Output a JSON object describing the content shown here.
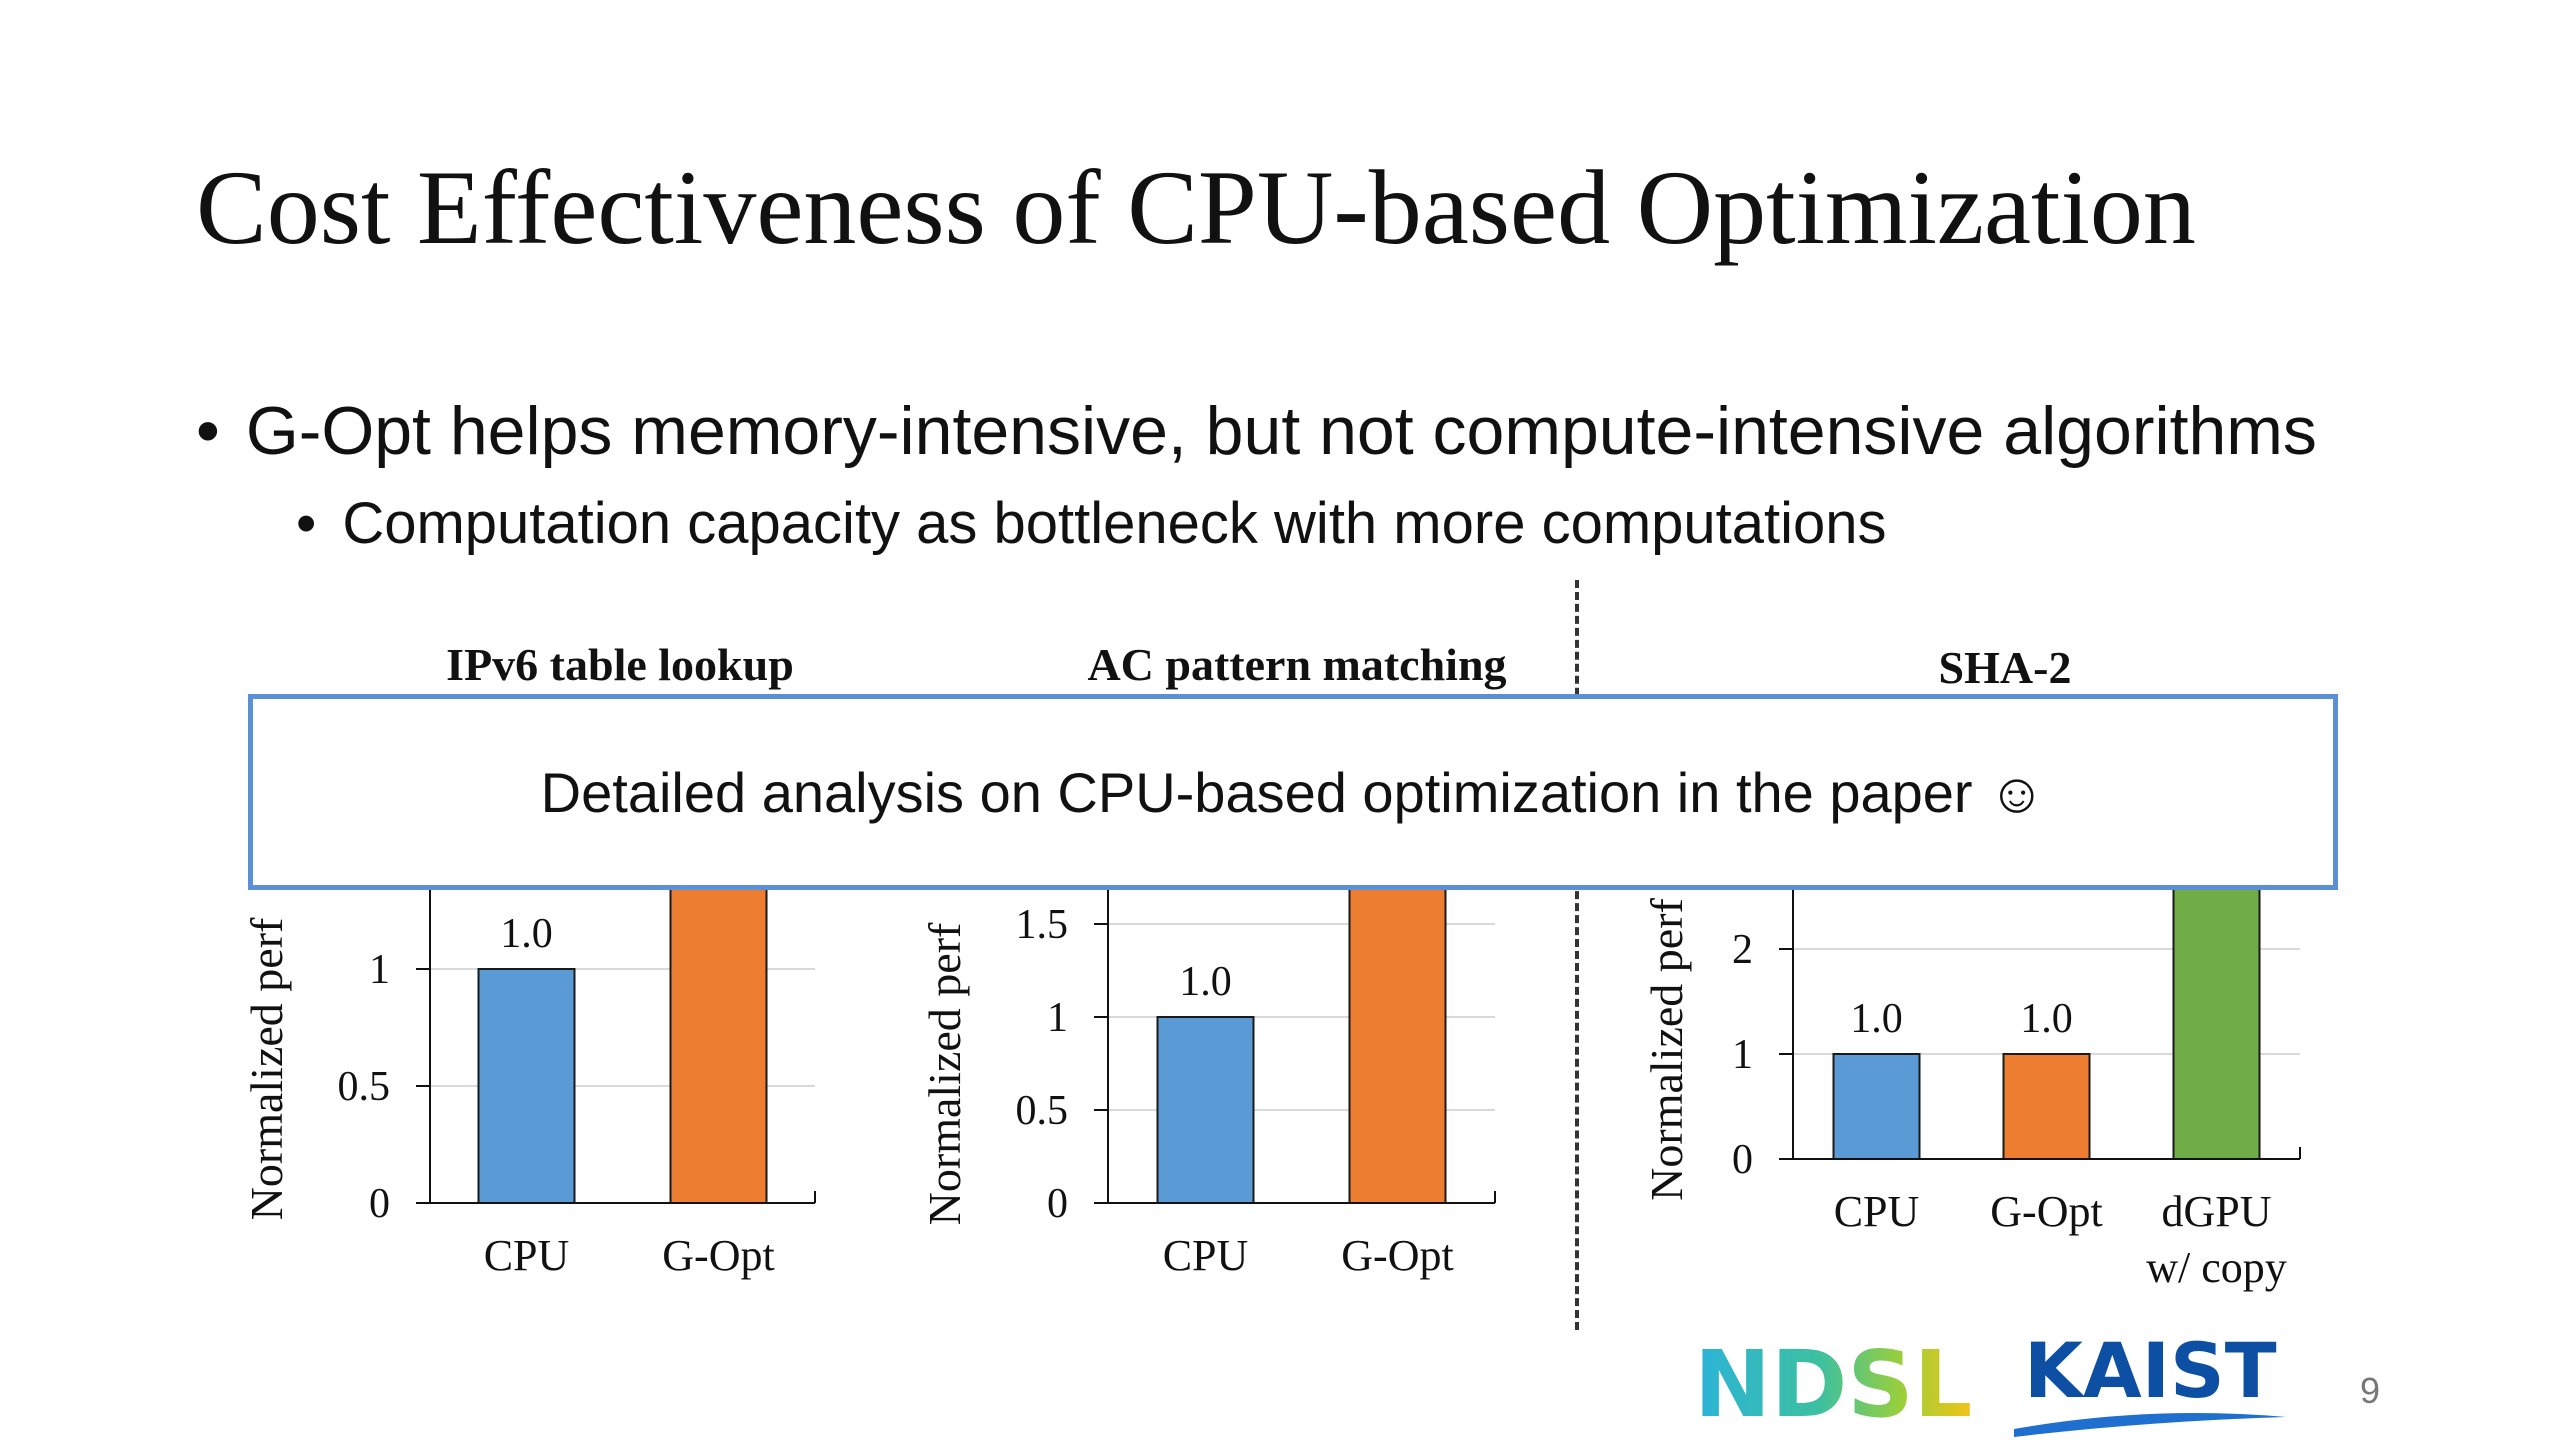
{
  "slide": {
    "title": "Cost Effectiveness of CPU-based Optimization",
    "bullets": [
      "G-Opt helps memory-intensive, but not compute-intensive algorithms",
      "Computation capacity as bottleneck with more computations"
    ],
    "bullet_glyph": "•",
    "callout": "Detailed analysis on CPU-based optimization in the paper ☺",
    "page_number": "9",
    "logos": [
      "NDSL",
      "KAIST"
    ]
  },
  "colors": {
    "cpu": "#5b9bd5",
    "gopt": "#ed7d31",
    "dgpu": "#70ad47",
    "callout_border": "#5b8fd6"
  },
  "chart_data": [
    {
      "type": "bar",
      "title": "IPv6 table lookup",
      "ylabel": "Normalized perf",
      "categories": [
        "CPU",
        "G-Opt"
      ],
      "values": [
        1.0,
        1.6
      ],
      "data_labels": [
        "1.0",
        ""
      ],
      "bar_colors": [
        "#5b9bd5",
        "#ed7d31"
      ],
      "yticks": [
        "0",
        "0.5",
        "1"
      ],
      "ylim": [
        0,
        1.6
      ],
      "grid": true,
      "legend": "none"
    },
    {
      "type": "bar",
      "title": "AC pattern matching",
      "ylabel": "Normalized perf",
      "categories": [
        "CPU",
        "G-Opt"
      ],
      "values": [
        1.0,
        2.0
      ],
      "data_labels": [
        "1.0",
        ""
      ],
      "bar_colors": [
        "#5b9bd5",
        "#ed7d31"
      ],
      "yticks": [
        "0",
        "0.5",
        "1",
        "1.5"
      ],
      "ylim": [
        0,
        2.0
      ],
      "grid": true,
      "legend": "none"
    },
    {
      "type": "bar",
      "title": "SHA-2",
      "ylabel": "Normalized perf",
      "categories": [
        "CPU",
        "G-Opt",
        "dGPU w/ copy"
      ],
      "category_lines": [
        [
          "CPU"
        ],
        [
          "G-Opt"
        ],
        [
          "dGPU",
          "w/ copy"
        ]
      ],
      "values": [
        1.0,
        1.0,
        3.0
      ],
      "data_labels": [
        "1.0",
        "1.0",
        ""
      ],
      "bar_colors": [
        "#5b9bd5",
        "#ed7d31",
        "#70ad47"
      ],
      "yticks": [
        "0",
        "1",
        "2"
      ],
      "ylim": [
        0,
        3.0
      ],
      "grid": true,
      "legend": "none"
    }
  ]
}
